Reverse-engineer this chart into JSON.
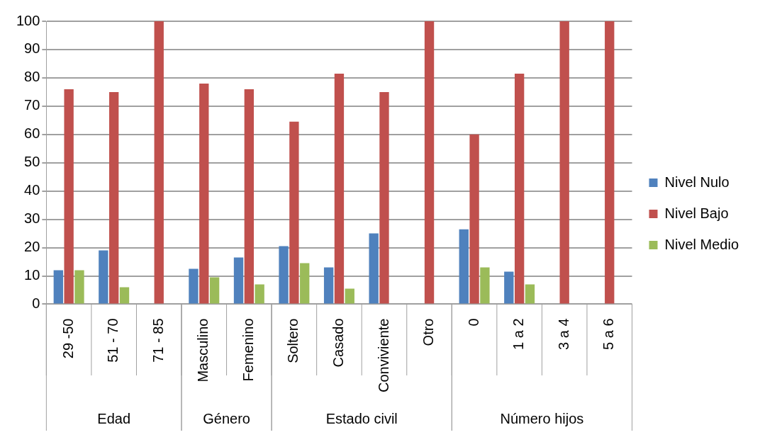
{
  "chart_data": {
    "type": "bar",
    "categories": [
      "29 -50",
      "51 - 70",
      "71 - 85",
      "Masculino",
      "Femenino",
      "Soltero",
      "Casado",
      "Conviviente",
      "Otro",
      "0",
      "1 a 2",
      "3 a 4",
      "5 a 6"
    ],
    "series": [
      {
        "name": "Nivel Nulo",
        "color": "#4f81bd",
        "values": [
          12,
          19,
          0,
          12.5,
          16.5,
          20.5,
          13,
          25,
          0,
          26.5,
          11.5,
          0,
          0
        ]
      },
      {
        "name": "Nivel Bajo",
        "color": "#c0504d",
        "values": [
          76,
          75,
          100,
          78,
          76,
          64.5,
          81.5,
          75,
          100,
          60,
          81.5,
          100,
          100
        ]
      },
      {
        "name": "Nivel Medio",
        "color": "#9bbb59",
        "values": [
          12,
          6,
          0,
          9.5,
          7,
          14.5,
          5.5,
          0,
          0,
          13,
          7,
          0,
          0
        ]
      }
    ],
    "ylim": [
      0,
      100
    ],
    "yticks": [
      0,
      10,
      20,
      30,
      40,
      50,
      60,
      70,
      80,
      90,
      100
    ],
    "grid": "y",
    "legend": "right",
    "annotations": [
      "Edad",
      "Género",
      "Estado civil",
      "Número hijos"
    ]
  }
}
